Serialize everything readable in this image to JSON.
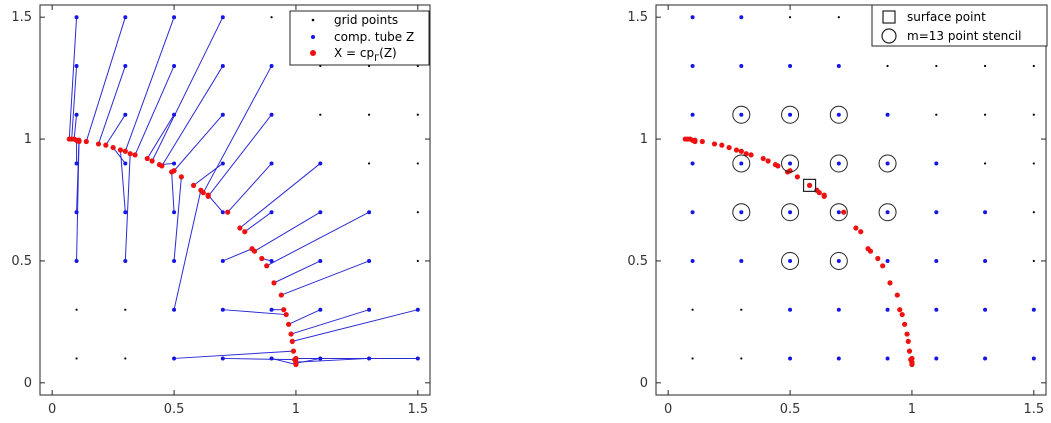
{
  "chart_data": [
    {
      "type": "scatter",
      "panel": "left",
      "xlim": [
        -0.05,
        1.55
      ],
      "ylim": [
        -0.05,
        1.55
      ],
      "xticks": [
        "0",
        "0.5",
        "1",
        "1.5"
      ],
      "yticks": [
        "0",
        "0.5",
        "1",
        "1.5"
      ],
      "legend_position": "top-right",
      "legend": [
        "grid points",
        "comp. tube Z",
        "X = cp",
        "Γ",
        "(Z)"
      ],
      "colors": {
        "grid": "#000000",
        "tube": "#1515e6",
        "cp": "#ee1111",
        "line": "#2b2bd6"
      },
      "grid_points": {
        "x": [
          0.1,
          0.3,
          0.5,
          0.7,
          0.9,
          1.1,
          1.3,
          1.5
        ],
        "y": [
          0.1,
          0.3,
          0.5,
          0.7,
          0.9,
          1.1,
          1.3,
          1.5
        ]
      },
      "segments": [
        [
          0.1,
          1.5,
          0.07,
          1.0
        ],
        [
          0.1,
          1.3,
          0.08,
          1.0
        ],
        [
          0.1,
          1.1,
          0.09,
          1.0
        ],
        [
          0.1,
          0.9,
          0.1,
          0.995
        ],
        [
          0.1,
          0.7,
          0.11,
          0.995
        ],
        [
          0.1,
          0.5,
          0.11,
          0.99
        ],
        [
          0.3,
          1.5,
          0.14,
          0.99
        ],
        [
          0.3,
          1.3,
          0.19,
          0.98
        ],
        [
          0.3,
          1.1,
          0.22,
          0.975
        ],
        [
          0.3,
          0.9,
          0.25,
          0.965
        ],
        [
          0.3,
          0.7,
          0.28,
          0.955
        ],
        [
          0.3,
          0.5,
          0.32,
          0.94
        ],
        [
          0.5,
          1.5,
          0.3,
          0.95
        ],
        [
          0.5,
          1.3,
          0.34,
          0.935
        ],
        [
          0.5,
          1.1,
          0.39,
          0.92
        ],
        [
          0.5,
          0.9,
          0.44,
          0.895
        ],
        [
          0.5,
          0.7,
          0.49,
          0.865
        ],
        [
          0.5,
          0.5,
          0.53,
          0.845
        ],
        [
          0.5,
          0.3,
          0.61,
          0.79
        ],
        [
          0.5,
          0.1,
          0.99,
          0.13
        ],
        [
          0.7,
          1.5,
          0.41,
          0.91
        ],
        [
          0.7,
          1.3,
          0.45,
          0.89
        ],
        [
          0.7,
          1.1,
          0.5,
          0.87
        ],
        [
          0.7,
          0.9,
          0.58,
          0.81
        ],
        [
          0.7,
          0.7,
          0.64,
          0.77
        ],
        [
          0.7,
          0.5,
          0.82,
          0.55
        ],
        [
          0.7,
          0.3,
          0.96,
          0.28
        ],
        [
          0.7,
          0.1,
          0.995,
          0.095
        ],
        [
          0.9,
          1.3,
          0.62,
          0.78
        ],
        [
          0.9,
          1.1,
          0.64,
          0.765
        ],
        [
          0.9,
          0.9,
          0.72,
          0.7
        ],
        [
          0.9,
          0.7,
          0.79,
          0.62
        ],
        [
          0.9,
          0.5,
          0.86,
          0.51
        ],
        [
          0.9,
          0.3,
          0.95,
          0.3
        ],
        [
          0.9,
          0.1,
          1.0,
          0.075
        ],
        [
          1.1,
          0.9,
          0.77,
          0.635
        ],
        [
          1.1,
          0.7,
          0.83,
          0.54
        ],
        [
          1.1,
          0.5,
          0.91,
          0.41
        ],
        [
          1.1,
          0.3,
          0.97,
          0.24
        ],
        [
          1.1,
          0.1,
          1.0,
          0.08
        ],
        [
          1.3,
          0.7,
          0.88,
          0.48
        ],
        [
          1.3,
          0.5,
          0.94,
          0.36
        ],
        [
          1.3,
          0.3,
          0.98,
          0.2
        ],
        [
          1.3,
          0.1,
          1.0,
          0.085
        ],
        [
          1.5,
          0.3,
          0.985,
          0.17
        ],
        [
          1.5,
          0.1,
          1.0,
          0.1
        ]
      ]
    },
    {
      "type": "scatter",
      "panel": "right",
      "xlim": [
        -0.05,
        1.55
      ],
      "ylim": [
        -0.05,
        1.55
      ],
      "xticks": [
        "0",
        "0.5",
        "1",
        "1.5"
      ],
      "yticks": [
        "0",
        "0.5",
        "1",
        "1.5"
      ],
      "legend_position": "top-right",
      "legend": [
        "surface point",
        "m=13 point stencil"
      ],
      "colors": {
        "grid": "#000000",
        "tube": "#1515e6",
        "cp": "#ee1111",
        "marker": "#222222"
      },
      "tube_points": [
        [
          0.1,
          1.5
        ],
        [
          0.3,
          1.5
        ],
        [
          0.1,
          1.3
        ],
        [
          0.3,
          1.3
        ],
        [
          0.5,
          1.3
        ],
        [
          0.7,
          1.3
        ],
        [
          0.1,
          1.1
        ],
        [
          0.3,
          1.1
        ],
        [
          0.5,
          1.1
        ],
        [
          0.7,
          1.1
        ],
        [
          0.9,
          1.1
        ],
        [
          0.1,
          0.9
        ],
        [
          0.3,
          0.9
        ],
        [
          0.5,
          0.9
        ],
        [
          0.7,
          0.9
        ],
        [
          0.9,
          0.9
        ],
        [
          1.1,
          0.9
        ],
        [
          0.1,
          0.7
        ],
        [
          0.3,
          0.7
        ],
        [
          0.5,
          0.7
        ],
        [
          0.7,
          0.7
        ],
        [
          0.9,
          0.7
        ],
        [
          1.1,
          0.7
        ],
        [
          1.3,
          0.7
        ],
        [
          0.1,
          0.5
        ],
        [
          0.3,
          0.5
        ],
        [
          0.5,
          0.5
        ],
        [
          0.7,
          0.5
        ],
        [
          0.9,
          0.5
        ],
        [
          1.1,
          0.5
        ],
        [
          1.3,
          0.5
        ],
        [
          0.5,
          0.3
        ],
        [
          0.7,
          0.3
        ],
        [
          0.9,
          0.3
        ],
        [
          1.1,
          0.3
        ],
        [
          1.3,
          0.3
        ],
        [
          1.5,
          0.3
        ],
        [
          0.5,
          0.1
        ],
        [
          0.7,
          0.1
        ],
        [
          0.9,
          0.1
        ],
        [
          1.1,
          0.1
        ],
        [
          1.3,
          0.1
        ],
        [
          1.5,
          0.1
        ]
      ],
      "surface_point": [
        0.58,
        0.81
      ],
      "stencil": [
        [
          0.3,
          1.1
        ],
        [
          0.5,
          1.1
        ],
        [
          0.7,
          1.1
        ],
        [
          0.3,
          0.9
        ],
        [
          0.5,
          0.9
        ],
        [
          0.7,
          0.9
        ],
        [
          0.9,
          0.9
        ],
        [
          0.3,
          0.7
        ],
        [
          0.5,
          0.7
        ],
        [
          0.7,
          0.7
        ],
        [
          0.9,
          0.7
        ],
        [
          0.5,
          0.5
        ],
        [
          0.7,
          0.5
        ]
      ]
    }
  ]
}
